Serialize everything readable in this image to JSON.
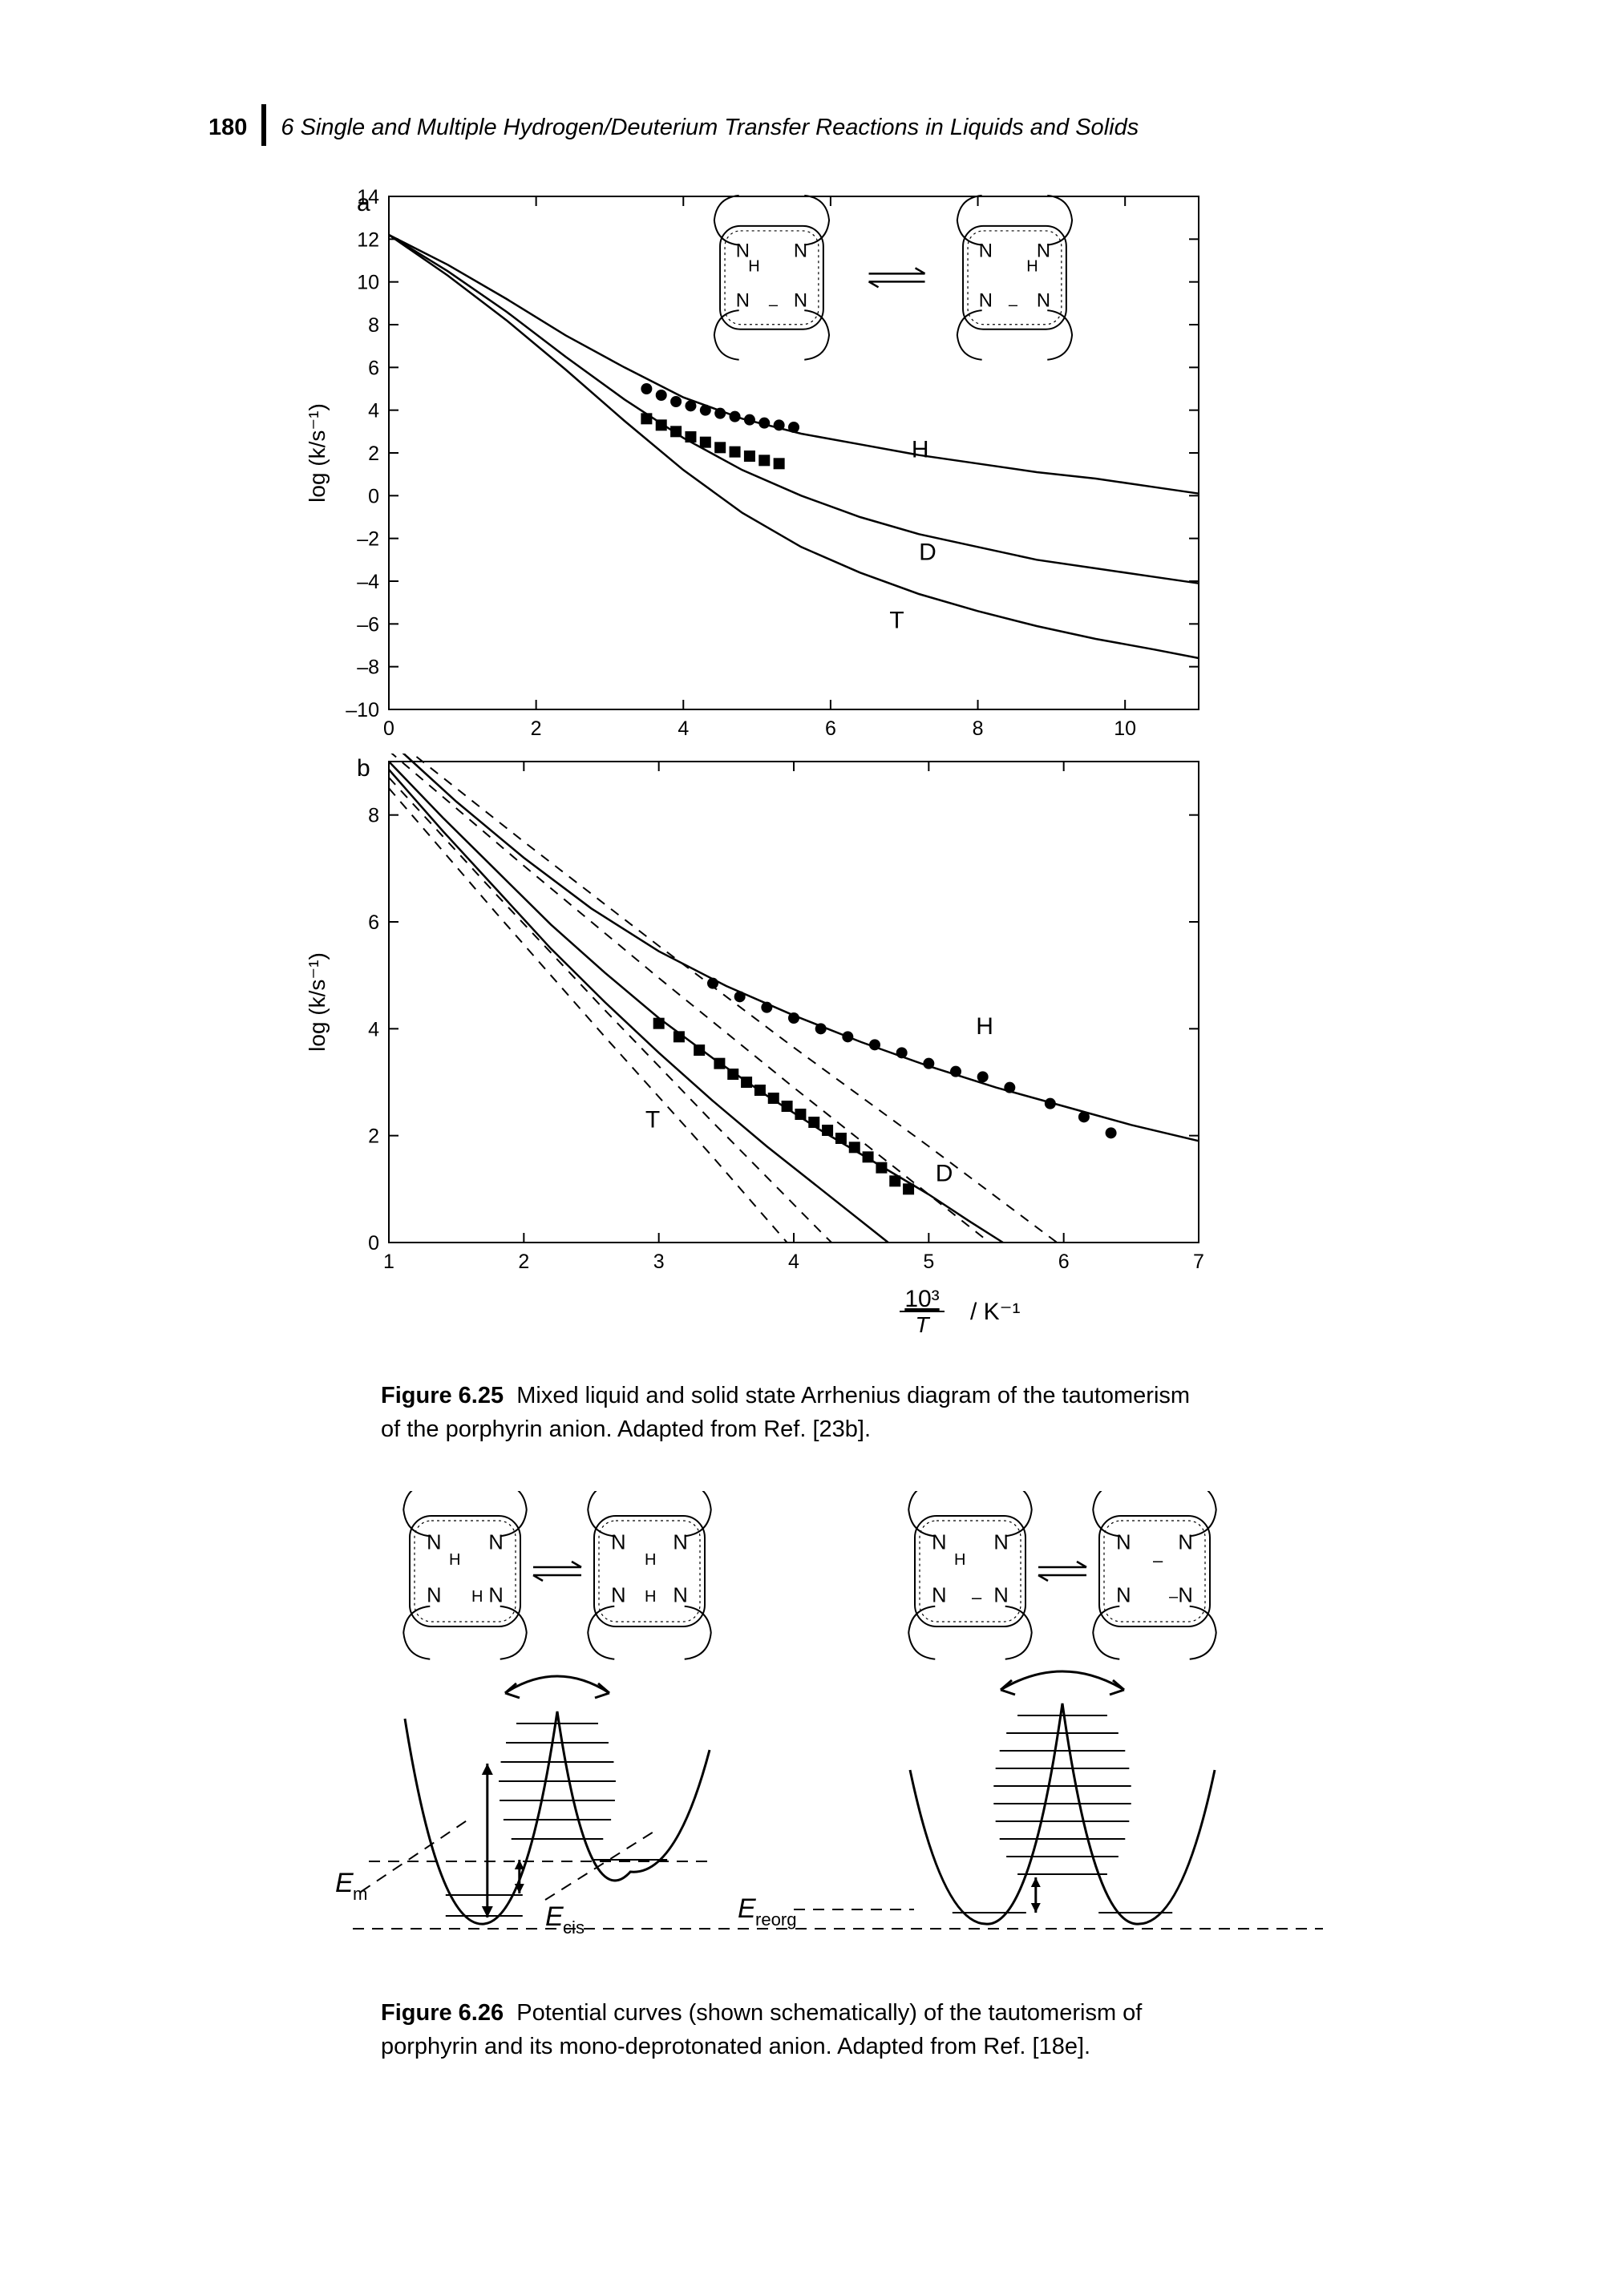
{
  "header": {
    "page_number": "180",
    "running_head": "6 Single and Multiple Hydrogen/Deuterium Transfer Reactions in Liquids and Solids"
  },
  "fig625": {
    "caption_bold": "Figure 6.25",
    "caption": "Mixed liquid and solid state Arrhenius diagram of the tautomerism of the porphyrin anion. Adapted from Ref. [23b].",
    "panelA": {
      "label": "a",
      "ylabel": "log (k/s⁻¹)",
      "ylim": [
        -10,
        14
      ],
      "yticks": [
        -10,
        -8,
        -6,
        -4,
        -2,
        0,
        2,
        4,
        6,
        8,
        10,
        12,
        14
      ],
      "xlim": [
        0,
        11
      ],
      "xticks": [
        0,
        2,
        4,
        6,
        8,
        10
      ],
      "series_labels": {
        "H": "H",
        "D": "D",
        "T": "T"
      },
      "label_pos": {
        "H": [
          7.1,
          1.8
        ],
        "D": [
          7.2,
          -3.0
        ],
        "T": [
          6.8,
          -6.2
        ]
      },
      "H": [
        [
          0,
          12.2
        ],
        [
          0.8,
          10.8
        ],
        [
          1.6,
          9.2
        ],
        [
          2.4,
          7.5
        ],
        [
          3.2,
          6.0
        ],
        [
          4.0,
          4.6
        ],
        [
          4.8,
          3.6
        ],
        [
          5.6,
          2.9
        ],
        [
          6.4,
          2.4
        ],
        [
          7.2,
          1.9
        ],
        [
          8.0,
          1.5
        ],
        [
          8.8,
          1.1
        ],
        [
          9.6,
          0.8
        ],
        [
          10.4,
          0.4
        ],
        [
          11,
          0.1
        ]
      ],
      "D": [
        [
          0,
          12.2
        ],
        [
          0.8,
          10.5
        ],
        [
          1.6,
          8.6
        ],
        [
          2.4,
          6.5
        ],
        [
          3.2,
          4.5
        ],
        [
          4.0,
          2.7
        ],
        [
          4.8,
          1.2
        ],
        [
          5.6,
          0.0
        ],
        [
          6.4,
          -1.0
        ],
        [
          7.2,
          -1.8
        ],
        [
          8.0,
          -2.4
        ],
        [
          8.8,
          -3.0
        ],
        [
          9.6,
          -3.4
        ],
        [
          10.4,
          -3.8
        ],
        [
          11,
          -4.1
        ]
      ],
      "T": [
        [
          0,
          12.2
        ],
        [
          0.8,
          10.3
        ],
        [
          1.6,
          8.2
        ],
        [
          2.4,
          5.9
        ],
        [
          3.2,
          3.5
        ],
        [
          4.0,
          1.2
        ],
        [
          4.8,
          -0.8
        ],
        [
          5.6,
          -2.4
        ],
        [
          6.4,
          -3.6
        ],
        [
          7.2,
          -4.6
        ],
        [
          8.0,
          -5.4
        ],
        [
          8.8,
          -6.1
        ],
        [
          9.6,
          -6.7
        ],
        [
          10.4,
          -7.2
        ],
        [
          11,
          -7.6
        ]
      ],
      "points_H": [
        [
          3.5,
          5.0
        ],
        [
          3.7,
          4.7
        ],
        [
          3.9,
          4.4
        ],
        [
          4.1,
          4.2
        ],
        [
          4.3,
          4.0
        ],
        [
          4.5,
          3.85
        ],
        [
          4.7,
          3.7
        ],
        [
          4.9,
          3.55
        ],
        [
          5.1,
          3.4
        ],
        [
          5.3,
          3.3
        ],
        [
          5.5,
          3.2
        ]
      ],
      "points_D": [
        [
          3.5,
          3.6
        ],
        [
          3.7,
          3.3
        ],
        [
          3.9,
          3.0
        ],
        [
          4.1,
          2.75
        ],
        [
          4.3,
          2.5
        ],
        [
          4.5,
          2.25
        ],
        [
          4.7,
          2.05
        ],
        [
          4.9,
          1.85
        ],
        [
          5.1,
          1.65
        ],
        [
          5.3,
          1.5
        ]
      ],
      "line_color": "#000",
      "line_width": 2.5,
      "marker_color": "#000",
      "marker_size": 7,
      "font_size_axis": 28,
      "font_size_ticks": 25,
      "panel_font": 30
    },
    "panelB": {
      "label": "b",
      "ylabel": "log (k/s⁻¹)",
      "xlabel": "10³⁄T / K⁻¹",
      "ylim": [
        0,
        9
      ],
      "yticks": [
        0,
        2,
        4,
        6,
        8
      ],
      "xlim": [
        1,
        7
      ],
      "xticks": [
        1,
        2,
        3,
        4,
        5,
        6,
        7
      ],
      "series_labels": {
        "H": "H",
        "D": "D",
        "T": "T"
      },
      "label_pos": {
        "H": [
          5.35,
          3.9
        ],
        "D": [
          5.05,
          1.15
        ],
        "T": [
          2.9,
          2.15
        ]
      },
      "H": [
        [
          1.0,
          9.4
        ],
        [
          1.5,
          8.25
        ],
        [
          2.0,
          7.2
        ],
        [
          2.5,
          6.25
        ],
        [
          3.0,
          5.45
        ],
        [
          3.5,
          4.8
        ],
        [
          4.0,
          4.25
        ],
        [
          4.5,
          3.75
        ],
        [
          5.0,
          3.3
        ],
        [
          5.5,
          2.9
        ],
        [
          6.0,
          2.55
        ],
        [
          6.5,
          2.2
        ],
        [
          7.0,
          1.9
        ]
      ],
      "D": [
        [
          1.0,
          9.0
        ],
        [
          1.4,
          7.95
        ],
        [
          1.8,
          6.95
        ],
        [
          2.2,
          5.95
        ],
        [
          2.6,
          5.05
        ],
        [
          3.0,
          4.2
        ],
        [
          3.4,
          3.45
        ],
        [
          3.8,
          2.75
        ],
        [
          4.2,
          2.1
        ],
        [
          4.6,
          1.5
        ],
        [
          5.0,
          0.9
        ],
        [
          5.3,
          0.4
        ],
        [
          5.55,
          0.0
        ]
      ],
      "T": [
        [
          1.0,
          8.85
        ],
        [
          1.4,
          7.7
        ],
        [
          1.8,
          6.6
        ],
        [
          2.2,
          5.5
        ],
        [
          2.6,
          4.5
        ],
        [
          3.0,
          3.55
        ],
        [
          3.4,
          2.65
        ],
        [
          3.8,
          1.8
        ],
        [
          4.2,
          1.0
        ],
        [
          4.55,
          0.3
        ],
        [
          4.7,
          0.0
        ]
      ],
      "dashed": [
        [
          [
            1.0,
            9.5
          ],
          [
            2.0,
            7.5
          ],
          [
            3.0,
            5.55
          ],
          [
            4.0,
            3.65
          ],
          [
            5.0,
            1.8
          ],
          [
            5.95,
            0.0
          ]
        ],
        [
          [
            1.0,
            9.2
          ],
          [
            2.0,
            7.05
          ],
          [
            3.0,
            4.95
          ],
          [
            4.0,
            2.9
          ],
          [
            5.0,
            0.9
          ],
          [
            5.45,
            0.0
          ]
        ],
        [
          [
            1.0,
            8.7
          ],
          [
            1.8,
            6.5
          ],
          [
            2.6,
            4.35
          ],
          [
            3.4,
            2.25
          ],
          [
            4.2,
            0.2
          ],
          [
            4.28,
            0.0
          ]
        ],
        [
          [
            1.0,
            8.5
          ],
          [
            1.8,
            6.15
          ],
          [
            2.6,
            3.85
          ],
          [
            3.4,
            1.6
          ],
          [
            3.95,
            0.0
          ]
        ]
      ],
      "points_H": [
        [
          3.4,
          4.85
        ],
        [
          3.6,
          4.6
        ],
        [
          3.8,
          4.4
        ],
        [
          4.0,
          4.2
        ],
        [
          4.2,
          4.0
        ],
        [
          4.4,
          3.85
        ],
        [
          4.6,
          3.7
        ],
        [
          4.8,
          3.55
        ],
        [
          5.0,
          3.35
        ],
        [
          5.2,
          3.2
        ],
        [
          5.4,
          3.1
        ],
        [
          5.6,
          2.9
        ],
        [
          5.9,
          2.6
        ],
        [
          6.15,
          2.35
        ],
        [
          6.35,
          2.05
        ]
      ],
      "points_D": [
        [
          3.0,
          4.1
        ],
        [
          3.15,
          3.85
        ],
        [
          3.3,
          3.6
        ],
        [
          3.45,
          3.35
        ],
        [
          3.55,
          3.15
        ],
        [
          3.65,
          3.0
        ],
        [
          3.75,
          2.85
        ],
        [
          3.85,
          2.7
        ],
        [
          3.95,
          2.55
        ],
        [
          4.05,
          2.4
        ],
        [
          4.15,
          2.25
        ],
        [
          4.25,
          2.1
        ],
        [
          4.35,
          1.95
        ],
        [
          4.45,
          1.78
        ],
        [
          4.55,
          1.6
        ],
        [
          4.65,
          1.4
        ],
        [
          4.75,
          1.15
        ],
        [
          4.85,
          1.0
        ]
      ],
      "line_color": "#000",
      "line_width": 2.5,
      "dash_pattern": "12 10",
      "marker_color": "#000",
      "marker_size": 7,
      "font_size_axis": 28,
      "font_size_ticks": 25,
      "panel_font": 30
    }
  },
  "fig626": {
    "caption_bold": "Figure 6.26",
    "caption": "Potential curves (shown schematically) of the tautomerism of porphyrin and its mono-deprotonated anion. Adapted from Ref. [18e].",
    "labels": {
      "Em": "Eₘ",
      "Ecis": "E_cis",
      "Ereorg": "E_reorg"
    },
    "line_color": "#000",
    "line_width": 3,
    "dash_pattern": "14 10",
    "font_size": 34
  },
  "colors": {
    "text": "#000",
    "bg": "#fff"
  }
}
